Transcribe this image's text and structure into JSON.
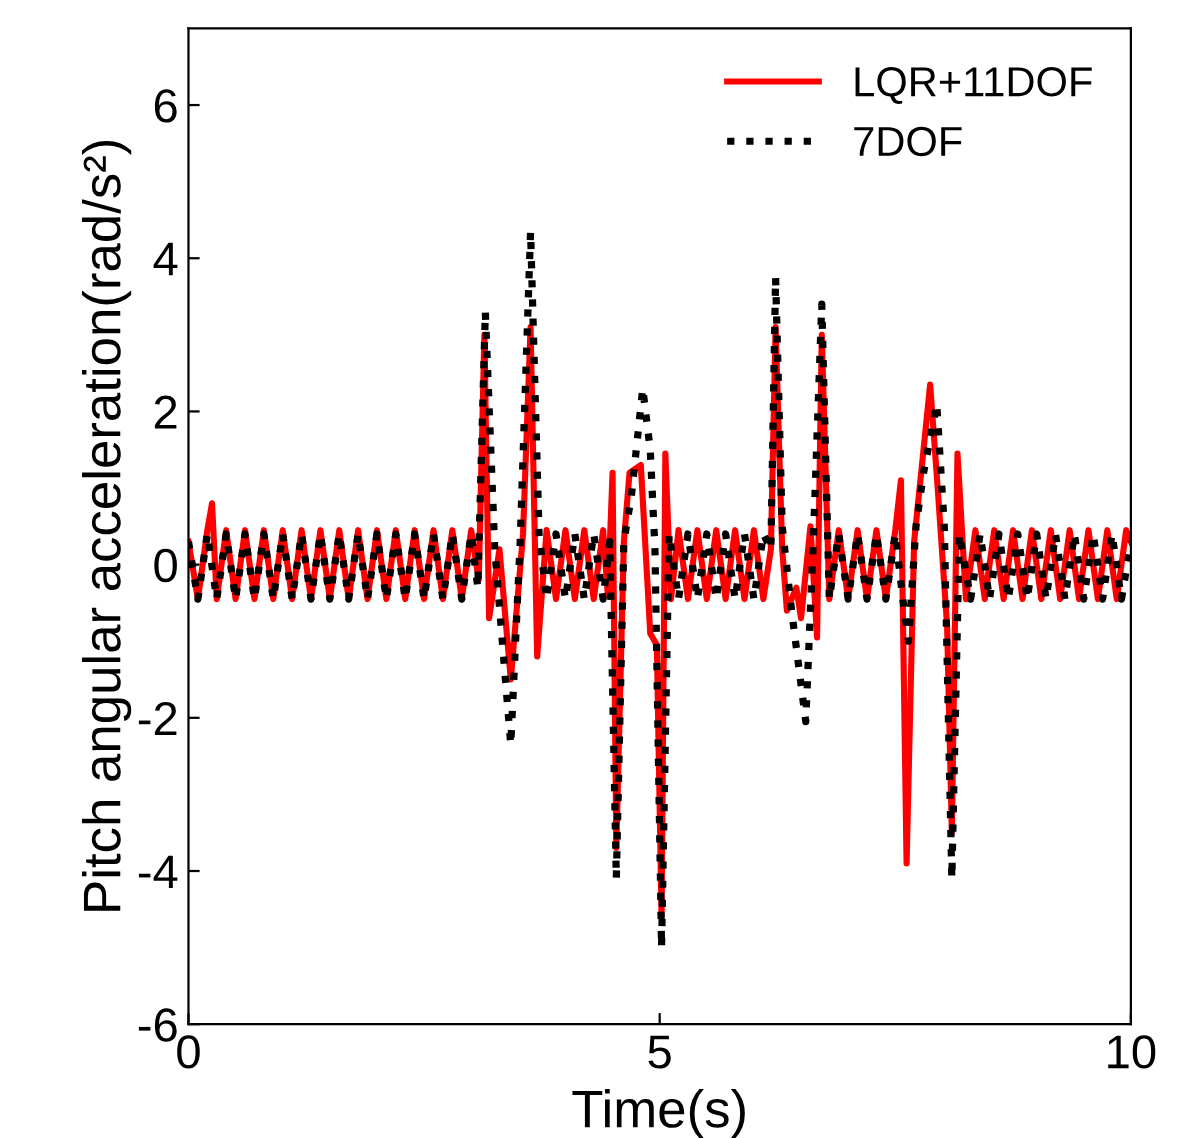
{
  "chart_data": {
    "type": "line",
    "xlabel": "Time(s)",
    "ylabel": "Pitch angular acceleration(rad/s²)",
    "xlim": [
      0,
      10
    ],
    "xticks": [
      0,
      5,
      10
    ],
    "ylim": [
      -6,
      7
    ],
    "yticks": [
      -6,
      -4,
      -2,
      0,
      2,
      4,
      6
    ],
    "grid": false,
    "legend": "top right",
    "marker": "none",
    "series": [
      {
        "name": "LQR+11DOF",
        "color": "#ff0000",
        "line_style": "solid",
        "x": [
          0,
          0.1,
          0.2,
          0.25,
          0.3,
          0.4,
          0.5,
          0.6,
          0.7,
          0.8,
          0.9,
          1.0,
          1.1,
          1.2,
          1.3,
          1.4,
          1.5,
          1.6,
          1.7,
          1.8,
          1.9,
          2.0,
          2.1,
          2.2,
          2.3,
          2.4,
          2.5,
          2.6,
          2.7,
          2.8,
          2.9,
          3.0,
          3.08,
          3.14,
          3.19,
          3.3,
          3.42,
          3.55,
          3.63,
          3.7,
          3.8,
          3.9,
          4.0,
          4.1,
          4.2,
          4.3,
          4.4,
          4.45,
          4.5,
          4.54,
          4.62,
          4.68,
          4.8,
          4.9,
          4.97,
          5.02,
          5.06,
          5.12,
          5.2,
          5.3,
          5.4,
          5.5,
          5.6,
          5.7,
          5.8,
          5.9,
          6.0,
          6.1,
          6.18,
          6.23,
          6.3,
          6.35,
          6.45,
          6.5,
          6.6,
          6.67,
          6.72,
          6.8,
          6.9,
          7.0,
          7.1,
          7.2,
          7.3,
          7.4,
          7.5,
          7.56,
          7.62,
          7.7,
          7.87,
          7.95,
          8.05,
          8.1,
          8.16,
          8.25,
          8.35,
          8.45,
          8.55,
          8.65,
          8.75,
          8.85,
          8.95,
          9.05,
          9.15,
          9.25,
          9.35,
          9.45,
          9.55,
          9.65,
          9.75,
          9.85,
          9.95,
          10.0
        ],
        "values": [
          0.3,
          -0.45,
          0.45,
          0.8,
          -0.45,
          0.45,
          -0.45,
          0.45,
          -0.45,
          0.45,
          -0.45,
          0.45,
          -0.45,
          0.45,
          -0.45,
          0.45,
          -0.45,
          0.45,
          -0.45,
          0.45,
          -0.45,
          0.45,
          -0.45,
          0.45,
          -0.45,
          0.45,
          -0.45,
          0.45,
          -0.45,
          0.45,
          -0.45,
          0.45,
          -0.2,
          3.0,
          -0.7,
          0.2,
          -1.5,
          0.4,
          3.1,
          -1.2,
          0.45,
          -0.45,
          0.45,
          -0.45,
          0.45,
          -0.45,
          0.45,
          -0.4,
          1.2,
          -3.7,
          0.3,
          1.2,
          1.3,
          -0.9,
          -1.05,
          -4.6,
          1.45,
          -0.45,
          0.45,
          -0.45,
          0.45,
          -0.45,
          0.45,
          -0.45,
          0.45,
          -0.45,
          0.45,
          -0.45,
          0.2,
          3.1,
          0.2,
          -0.6,
          -0.3,
          -0.7,
          0.5,
          -0.95,
          3.0,
          -0.45,
          0.45,
          -0.45,
          0.45,
          -0.45,
          0.45,
          -0.45,
          0.45,
          1.1,
          -3.9,
          0.3,
          2.35,
          1.0,
          -0.8,
          -3.5,
          1.45,
          -0.45,
          0.45,
          -0.45,
          0.45,
          -0.45,
          0.45,
          -0.45,
          0.45,
          -0.45,
          0.45,
          -0.45,
          0.45,
          -0.45,
          0.45,
          -0.45,
          0.45,
          -0.45,
          0.45,
          0.3
        ]
      },
      {
        "name": "7DOF",
        "color": "#000000",
        "line_style": "dotted",
        "x": [
          0,
          0.1,
          0.2,
          0.3,
          0.4,
          0.5,
          0.6,
          0.7,
          0.8,
          0.9,
          1.0,
          1.1,
          1.2,
          1.3,
          1.4,
          1.5,
          1.6,
          1.7,
          1.8,
          1.9,
          2.0,
          2.1,
          2.2,
          2.3,
          2.4,
          2.5,
          2.6,
          2.7,
          2.8,
          2.9,
          3.0,
          3.07,
          3.15,
          3.25,
          3.42,
          3.52,
          3.63,
          3.72,
          3.8,
          3.9,
          4.0,
          4.1,
          4.2,
          4.3,
          4.4,
          4.47,
          4.54,
          4.62,
          4.7,
          4.82,
          4.9,
          4.95,
          5.02,
          5.1,
          5.2,
          5.3,
          5.4,
          5.5,
          5.6,
          5.7,
          5.8,
          5.9,
          6.0,
          6.1,
          6.18,
          6.23,
          6.3,
          6.4,
          6.55,
          6.63,
          6.72,
          6.8,
          6.9,
          7.0,
          7.1,
          7.2,
          7.3,
          7.4,
          7.5,
          7.58,
          7.64,
          7.72,
          7.8,
          7.94,
          8.02,
          8.1,
          8.18,
          8.3,
          8.4,
          8.5,
          8.6,
          8.7,
          8.8,
          8.9,
          9.0,
          9.1,
          9.2,
          9.3,
          9.4,
          9.5,
          9.6,
          9.7,
          9.8,
          9.9,
          10.0
        ],
        "values": [
          0.3,
          -0.45,
          0.4,
          -0.45,
          0.4,
          -0.45,
          0.4,
          -0.45,
          0.4,
          -0.45,
          0.4,
          -0.45,
          0.4,
          -0.45,
          0.4,
          -0.45,
          0.4,
          -0.45,
          0.4,
          -0.45,
          0.4,
          -0.45,
          0.4,
          -0.45,
          0.4,
          -0.45,
          0.4,
          -0.45,
          0.4,
          -0.45,
          0.4,
          -0.3,
          3.3,
          0.2,
          -2.35,
          0.3,
          4.35,
          0.4,
          -0.45,
          0.4,
          -0.45,
          0.4,
          -0.45,
          0.4,
          -0.45,
          0.3,
          -4.1,
          0.3,
          0.9,
          2.3,
          1.5,
          0.2,
          -5.0,
          0.4,
          -0.45,
          0.4,
          -0.45,
          0.4,
          -0.45,
          0.4,
          -0.45,
          0.4,
          -0.45,
          0.4,
          0.2,
          3.75,
          0.5,
          -0.6,
          -2.05,
          0.3,
          3.4,
          -0.45,
          0.4,
          -0.45,
          0.4,
          -0.45,
          0.4,
          -0.45,
          0.4,
          -0.45,
          -1.0,
          0.5,
          1.2,
          2.1,
          0.5,
          -4.1,
          0.4,
          -0.45,
          0.4,
          -0.45,
          0.4,
          -0.45,
          0.4,
          -0.45,
          0.4,
          -0.45,
          0.4,
          -0.45,
          0.4,
          -0.45,
          0.4,
          -0.45,
          0.4,
          -0.45,
          0.3
        ]
      }
    ]
  }
}
